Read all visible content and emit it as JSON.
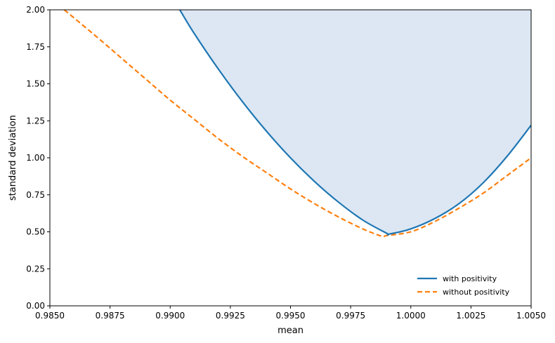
{
  "chart_data": {
    "type": "line",
    "title": "",
    "xlabel": "mean",
    "ylabel": "standard deviation",
    "xlim": [
      0.985,
      1.005
    ],
    "ylim": [
      0.0,
      2.0
    ],
    "xticks": [
      "0.9850",
      "0.9875",
      "0.9900",
      "0.9925",
      "0.9950",
      "0.9975",
      "1.0000",
      "1.0025",
      "1.0050"
    ],
    "yticks": [
      "0.00",
      "0.25",
      "0.50",
      "0.75",
      "1.00",
      "1.25",
      "1.50",
      "1.75",
      "2.00"
    ],
    "grid": false,
    "legend": {
      "position": "lower-right"
    },
    "fill": {
      "series": "with positivity",
      "region": "above",
      "color": "#dce7f3"
    },
    "series": [
      {
        "name": "with positivity",
        "color": "#1f77b4",
        "style": "solid",
        "x": [
          0.9904,
          0.991,
          0.992,
          0.993,
          0.994,
          0.995,
          0.996,
          0.997,
          0.998,
          0.999,
          0.9991,
          1.0,
          1.001,
          1.002,
          1.003,
          1.004,
          1.005
        ],
        "y": [
          2.0,
          1.84,
          1.6,
          1.38,
          1.18,
          1.0,
          0.84,
          0.7,
          0.58,
          0.49,
          0.485,
          0.52,
          0.59,
          0.69,
          0.83,
          1.01,
          1.22
        ]
      },
      {
        "name": "without positivity",
        "color": "#ff7f0e",
        "style": "dashed",
        "x": [
          0.9856,
          0.987,
          0.988,
          0.989,
          0.99,
          0.991,
          0.992,
          0.993,
          0.994,
          0.995,
          0.996,
          0.997,
          0.998,
          0.9988,
          0.999,
          1.0,
          1.001,
          1.002,
          1.003,
          1.004,
          1.005
        ],
        "y": [
          2.0,
          1.81,
          1.67,
          1.53,
          1.39,
          1.26,
          1.13,
          1.01,
          0.9,
          0.79,
          0.69,
          0.6,
          0.52,
          0.47,
          0.475,
          0.5,
          0.57,
          0.66,
          0.76,
          0.88,
          1.0
        ]
      }
    ]
  }
}
